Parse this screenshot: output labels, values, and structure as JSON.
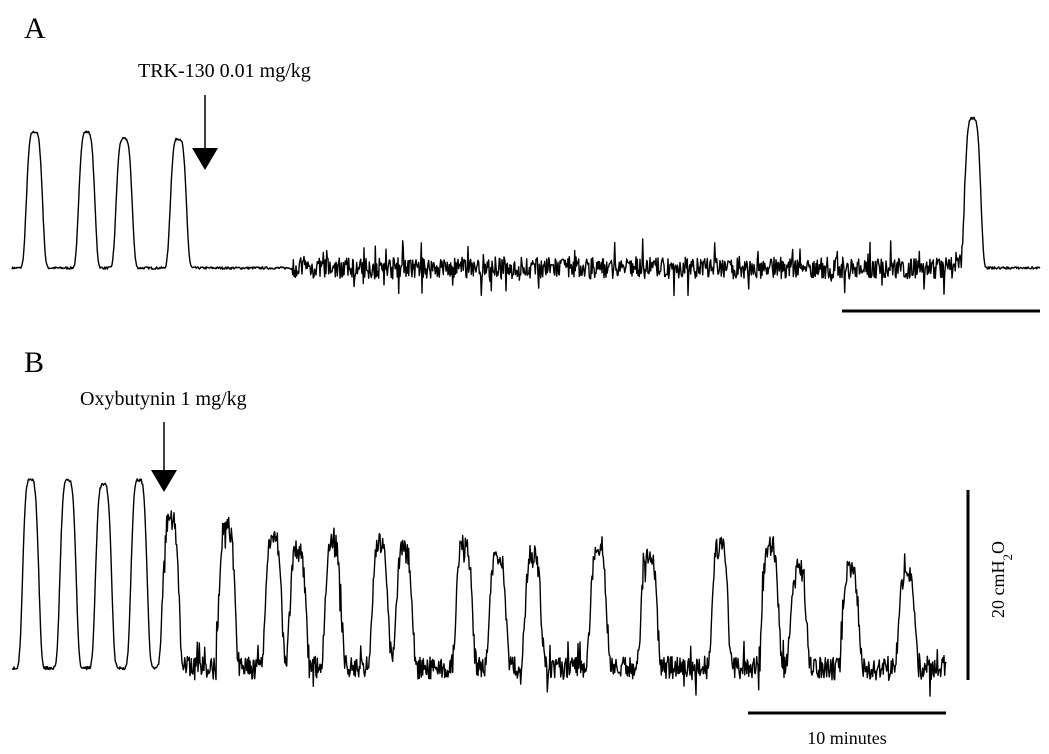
{
  "chart_data": [
    {
      "type": "line",
      "panel": "A",
      "annotation": "TRK-130 0.01 mg/kg",
      "x_unit": "minutes",
      "y_unit": "cmH2O",
      "baseline": 0,
      "drug_time": 10.0,
      "peaks": [
        {
          "t": 1.2,
          "amp": 20
        },
        {
          "t": 4.0,
          "amp": 20
        },
        {
          "t": 6.0,
          "amp": 19
        },
        {
          "t": 8.9,
          "amp": 19
        },
        {
          "t": 51.4,
          "amp": 22
        }
      ],
      "noise_start": 15,
      "noise_end": 51,
      "noise_amp": 1.5,
      "xlim": [
        0,
        55
      ]
    },
    {
      "type": "line",
      "panel": "B",
      "annotation": "Oxybutynin 1 mg/kg",
      "x_unit": "minutes",
      "y_unit": "cmH2O",
      "baseline": 0,
      "drug_time": 7.6,
      "peaks": [
        {
          "t": 1.0,
          "amp": 20
        },
        {
          "t": 3.0,
          "amp": 20
        },
        {
          "t": 4.9,
          "amp": 19.5
        },
        {
          "t": 6.8,
          "amp": 20
        },
        {
          "t": 8.5,
          "amp": 16
        },
        {
          "t": 11.5,
          "amp": 15
        },
        {
          "t": 14.0,
          "amp": 14
        },
        {
          "t": 15.3,
          "amp": 12.5
        },
        {
          "t": 17.2,
          "amp": 13
        },
        {
          "t": 19.7,
          "amp": 13
        },
        {
          "t": 21.0,
          "amp": 12.5
        },
        {
          "t": 24.2,
          "amp": 13
        },
        {
          "t": 26.0,
          "amp": 12
        },
        {
          "t": 27.9,
          "amp": 12
        },
        {
          "t": 31.4,
          "amp": 13
        },
        {
          "t": 34.1,
          "amp": 12
        },
        {
          "t": 37.9,
          "amp": 13
        },
        {
          "t": 40.6,
          "amp": 13
        },
        {
          "t": 42.1,
          "amp": 10.5
        },
        {
          "t": 44.9,
          "amp": 10.5
        },
        {
          "t": 47.9,
          "amp": 10
        }
      ],
      "noise_start": 8,
      "noise_end": 50,
      "noise_amp": 1.2,
      "xlim": [
        0,
        50
      ]
    }
  ],
  "panels": {
    "a": {
      "letter": "A",
      "annotation": "TRK-130 0.01 mg/kg"
    },
    "b": {
      "letter": "B",
      "annotation": "Oxybutynin 1 mg/kg"
    }
  },
  "scale": {
    "time_label": "10 minutes",
    "pressure_number": "20 cmH",
    "pressure_sub": "2",
    "pressure_suffix": "O"
  }
}
